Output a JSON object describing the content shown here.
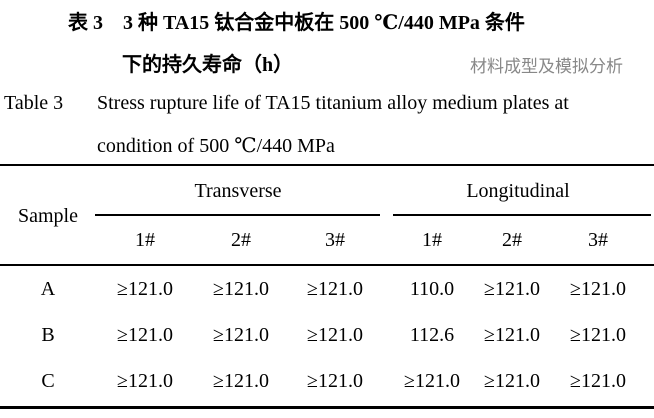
{
  "title_cn": {
    "line1": "表 3　3 种 TA15 钛合金中板在 500 ℃/440 MPa 条件",
    "line2": "下的持久寿命（h）"
  },
  "title_en": {
    "label": "Table 3",
    "line1": "Stress rupture life of TA15 titanium alloy medium plates at",
    "line2": "condition of 500 ℃/440 MPa"
  },
  "table": {
    "sample_header": "Sample",
    "groups": [
      "Transverse",
      "Longitudinal"
    ],
    "subheaders": [
      "1#",
      "2#",
      "3#",
      "1#",
      "2#",
      "3#"
    ],
    "rows": [
      {
        "sample": "A",
        "values": [
          "≥121.0",
          "≥121.0",
          "≥121.0",
          "110.0",
          "≥121.0",
          "≥121.0"
        ]
      },
      {
        "sample": "B",
        "values": [
          "≥121.0",
          "≥121.0",
          "≥121.0",
          "112.6",
          "≥121.0",
          "≥121.0"
        ]
      },
      {
        "sample": "C",
        "values": [
          "≥121.0",
          "≥121.0",
          "≥121.0",
          "≥121.0",
          "≥121.0",
          "≥121.0"
        ]
      }
    ]
  },
  "watermark": "材料成型及模拟分析"
}
